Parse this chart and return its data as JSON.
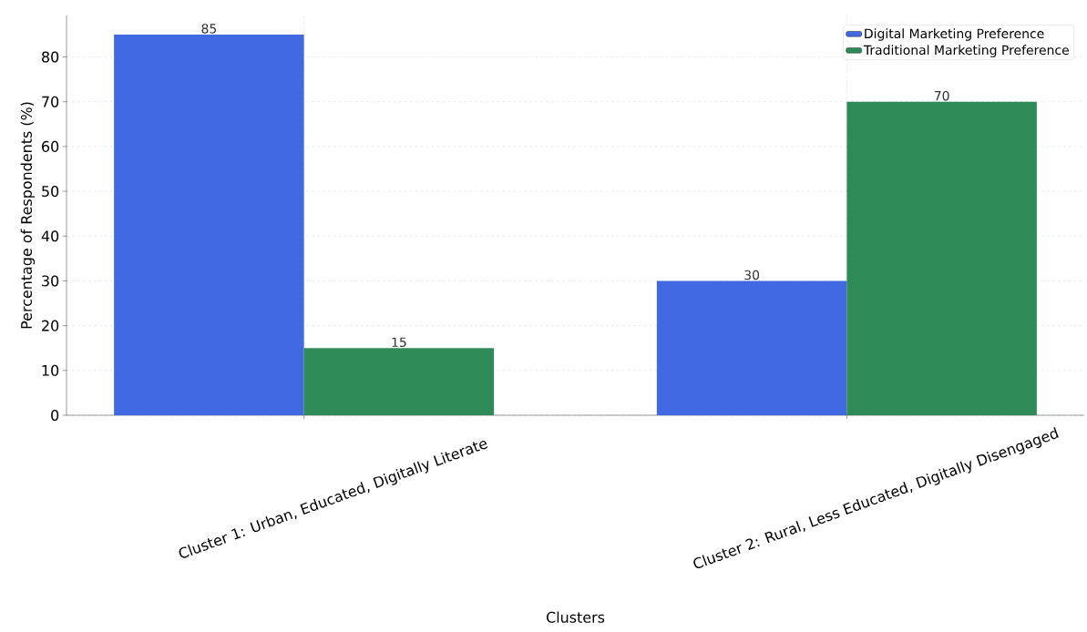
{
  "chart_data": {
    "type": "bar",
    "xlabel": "Clusters",
    "ylabel": "Percentage of Respondents (%)",
    "categories": [
      "Cluster 1: Urban, Educated, Digitally Literate",
      "Cluster 2: Rural, Less Educated, Digitally Disengaged"
    ],
    "series": [
      {
        "name": "Digital Marketing Preference",
        "color": "#4169e1",
        "values": [
          85,
          30
        ]
      },
      {
        "name": "Traditional Marketing Preference",
        "color": "#2e8b57",
        "values": [
          15,
          70
        ]
      }
    ],
    "ylim": [
      0,
      89.25
    ],
    "yticks": [
      0,
      10,
      20,
      30,
      40,
      50,
      60,
      70,
      80
    ],
    "grid": true,
    "legend": "top right",
    "data_labels": true
  }
}
